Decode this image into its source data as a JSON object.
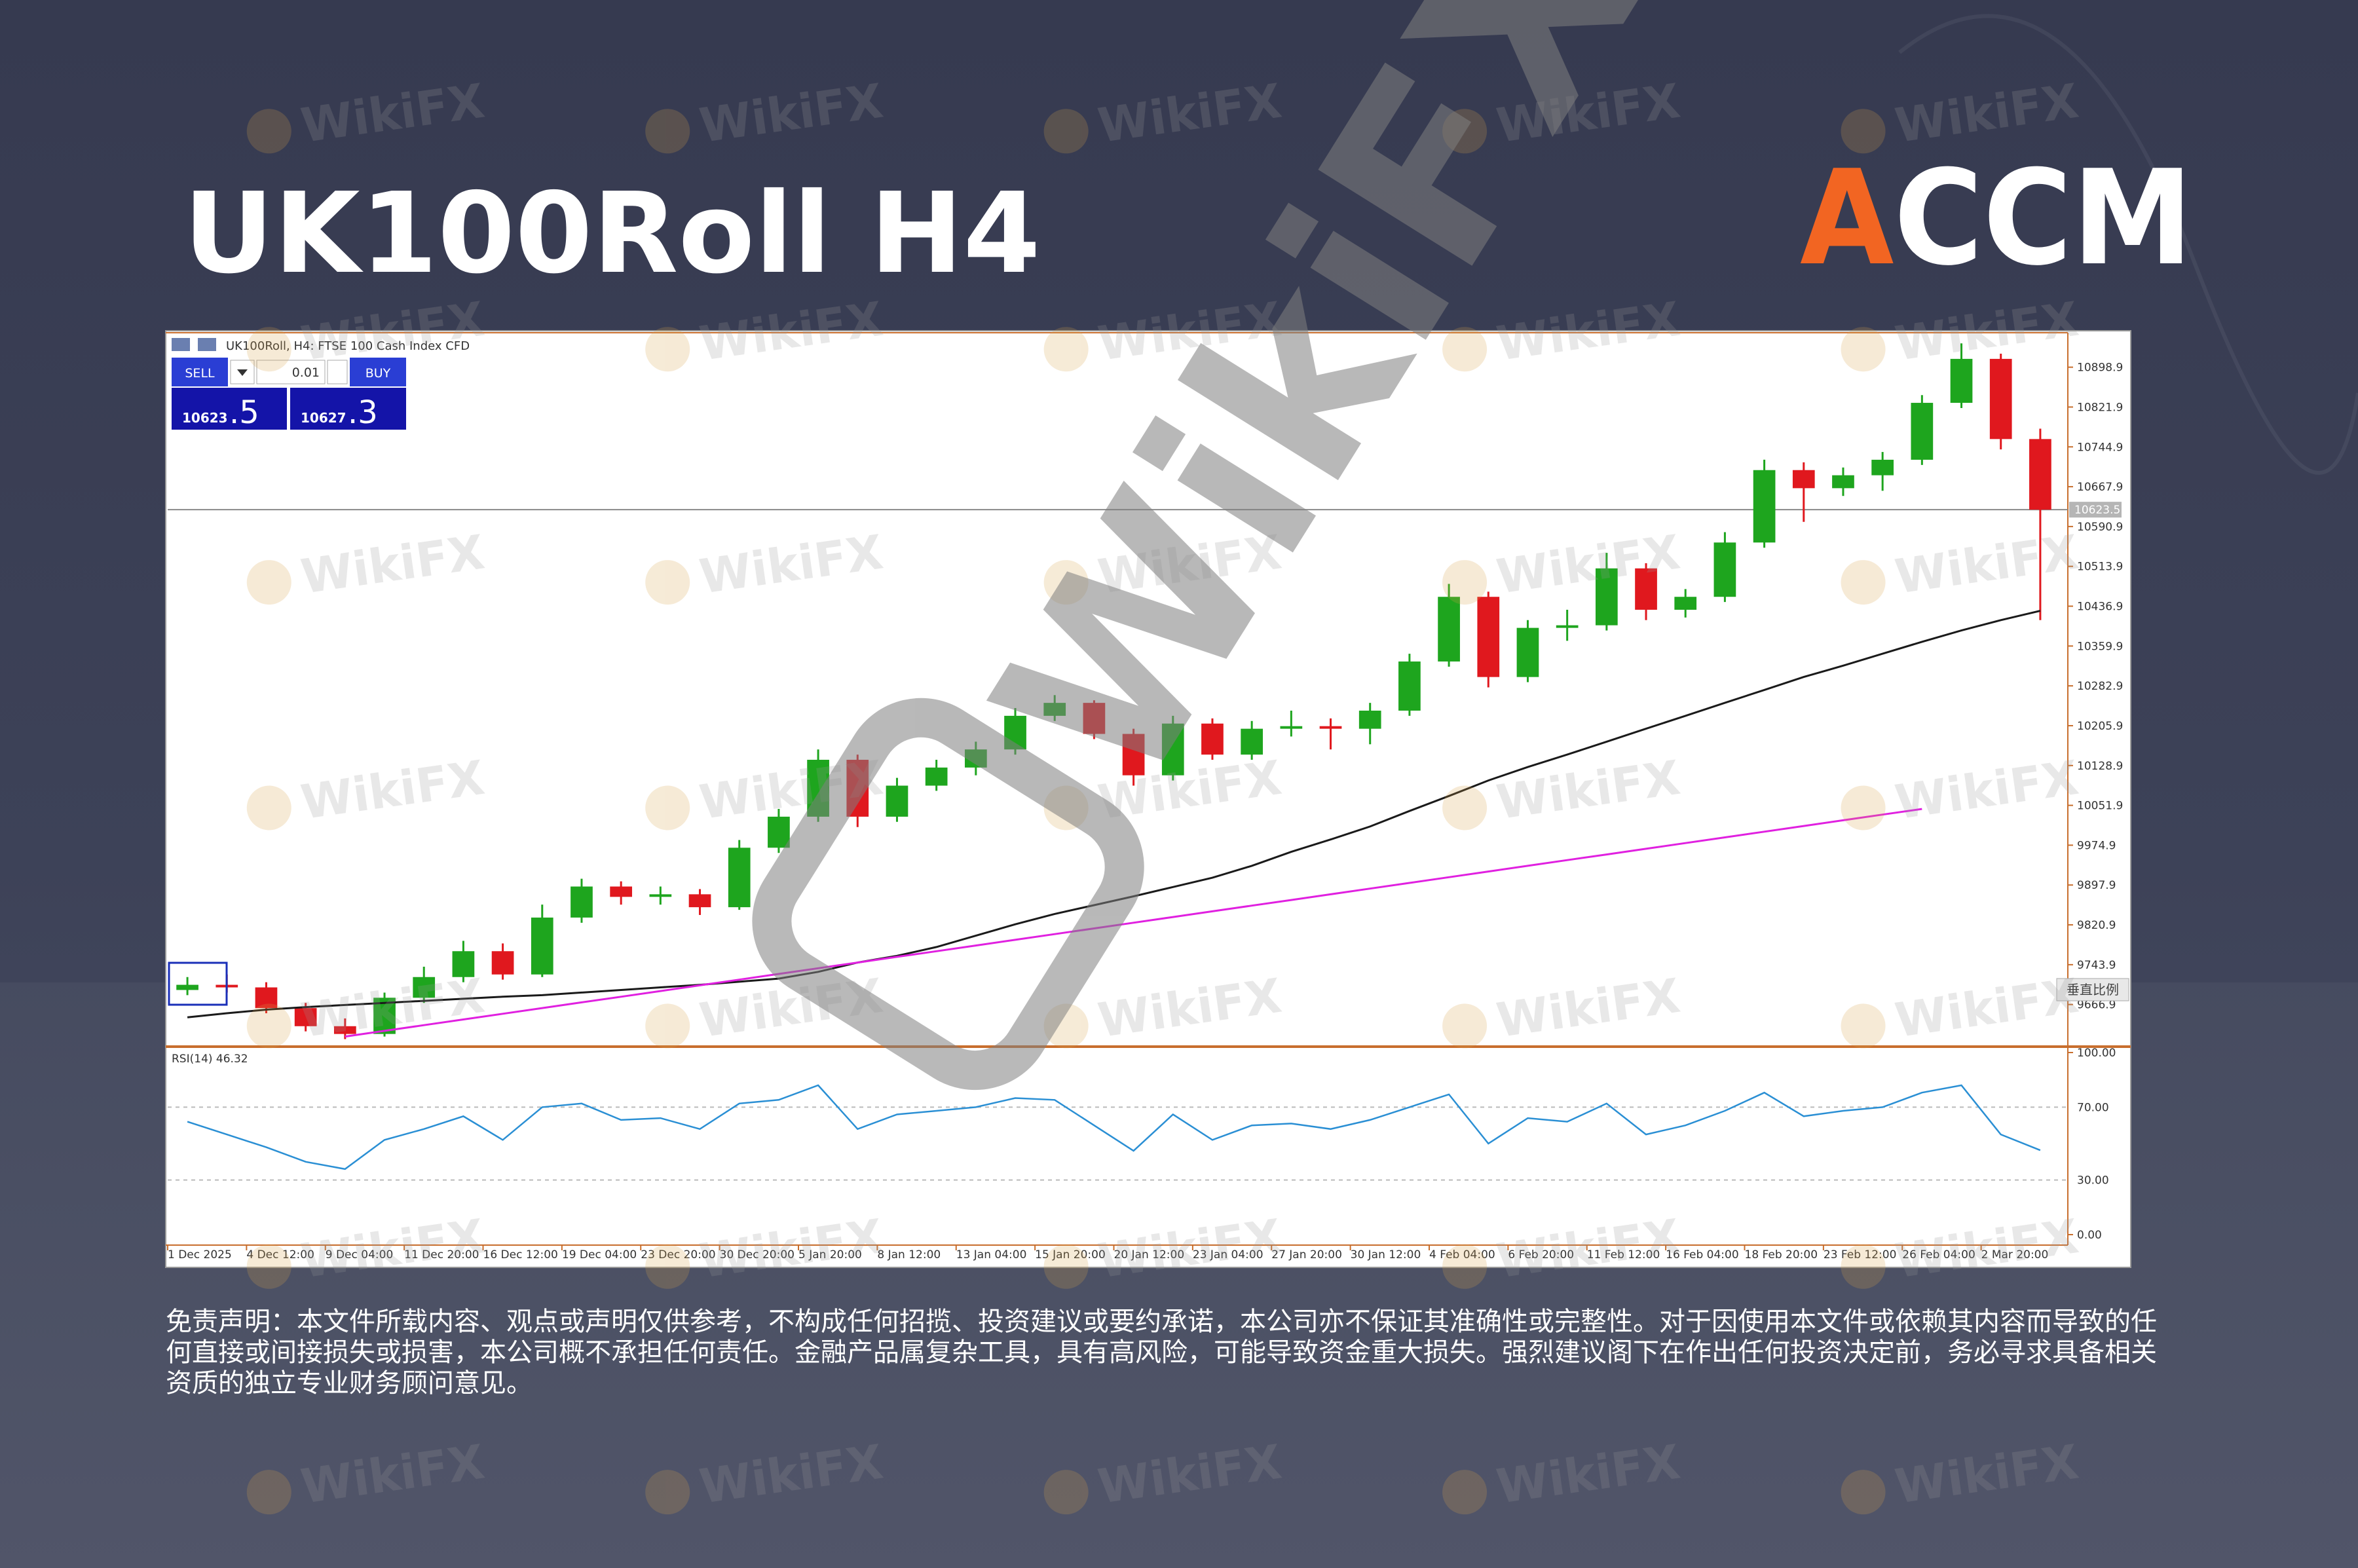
{
  "header": {
    "title": "UK100Roll H4",
    "logo": "ACCM"
  },
  "watermark": "WikiFX",
  "trade_panel": {
    "sell": "SELL",
    "buy": "BUY",
    "volume": "0.01",
    "sell_price": "10623",
    "sell_price_frac": ".5",
    "buy_price": "10627",
    "buy_price_frac": ".3"
  },
  "scale_button": "垂直比例",
  "chart_data": {
    "type": "candlestick",
    "title": "UK100Roll, H4:  FTSE 100 Cash Index CFD",
    "categories": [
      "1 Dec 2025",
      null,
      "4 Dec 12:00",
      null,
      "9 Dec 04:00",
      null,
      "11 Dec 20:00",
      null,
      "16 Dec 12:00",
      null,
      "19 Dec 04:00",
      null,
      "23 Dec 20:00",
      null,
      "30 Dec 20:00",
      null,
      "5 Jan 20:00",
      null,
      "8 Jan 12:00",
      null,
      "13 Jan 04:00",
      null,
      "15 Jan 20:00",
      null,
      "20 Jan 12:00",
      null,
      "23 Jan 04:00",
      null,
      "27 Jan 20:00",
      null,
      "30 Jan 12:00",
      null,
      "4 Feb 04:00",
      null,
      "6 Feb 20:00",
      null,
      "11 Feb 12:00",
      null,
      "16 Feb 04:00",
      null,
      "18 Feb 20:00",
      null,
      "23 Feb 12:00",
      null,
      "26 Feb 04:00",
      null,
      "2 Mar 20:00",
      null
    ],
    "ohlc": [
      [
        9695,
        9720,
        9685,
        9705
      ],
      [
        9705,
        9725,
        9690,
        9700
      ],
      [
        9700,
        9710,
        9650,
        9660
      ],
      [
        9660,
        9670,
        9615,
        9625
      ],
      [
        9625,
        9640,
        9600,
        9610
      ],
      [
        9610,
        9690,
        9605,
        9680
      ],
      [
        9680,
        9740,
        9670,
        9720
      ],
      [
        9720,
        9790,
        9710,
        9770
      ],
      [
        9770,
        9785,
        9715,
        9725
      ],
      [
        9725,
        9860,
        9720,
        9835
      ],
      [
        9835,
        9910,
        9825,
        9895
      ],
      [
        9895,
        9905,
        9860,
        9875
      ],
      [
        9875,
        9895,
        9860,
        9880
      ],
      [
        9880,
        9890,
        9840,
        9855
      ],
      [
        9855,
        9985,
        9850,
        9970
      ],
      [
        9970,
        10045,
        9960,
        10030
      ],
      [
        10030,
        10160,
        10020,
        10140
      ],
      [
        10140,
        10150,
        10010,
        10030
      ],
      [
        10030,
        10105,
        10020,
        10090
      ],
      [
        10090,
        10140,
        10080,
        10125
      ],
      [
        10125,
        10175,
        10110,
        10160
      ],
      [
        10160,
        10240,
        10150,
        10225
      ],
      [
        10225,
        10265,
        10215,
        10250
      ],
      [
        10250,
        10255,
        10180,
        10190
      ],
      [
        10190,
        10200,
        10090,
        10110
      ],
      [
        10110,
        10225,
        10100,
        10210
      ],
      [
        10210,
        10220,
        10140,
        10150
      ],
      [
        10150,
        10215,
        10140,
        10200
      ],
      [
        10200,
        10235,
        10185,
        10205
      ],
      [
        10205,
        10220,
        10160,
        10200
      ],
      [
        10200,
        10250,
        10170,
        10235
      ],
      [
        10235,
        10345,
        10225,
        10330
      ],
      [
        10330,
        10480,
        10320,
        10455
      ],
      [
        10455,
        10465,
        10280,
        10300
      ],
      [
        10300,
        10410,
        10290,
        10395
      ],
      [
        10395,
        10430,
        10370,
        10400
      ],
      [
        10400,
        10540,
        10390,
        10510
      ],
      [
        10510,
        10520,
        10410,
        10430
      ],
      [
        10430,
        10470,
        10415,
        10455
      ],
      [
        10455,
        10580,
        10445,
        10560
      ],
      [
        10560,
        10720,
        10550,
        10700
      ],
      [
        10700,
        10715,
        10600,
        10665
      ],
      [
        10665,
        10705,
        10650,
        10690
      ],
      [
        10690,
        10735,
        10660,
        10720
      ],
      [
        10720,
        10845,
        10710,
        10830
      ],
      [
        10830,
        10945,
        10820,
        10915
      ],
      [
        10915,
        10925,
        10740,
        10760
      ],
      [
        10760,
        10780,
        10410,
        10623.5
      ]
    ],
    "colors": {
      "up": "#1ea51e",
      "down": "#e0181e"
    },
    "ylim": [
      9588,
      10963
    ],
    "yticks": [
      9666.9,
      9743.9,
      9820.9,
      9897.9,
      9974.9,
      10051.9,
      10128.9,
      10205.9,
      10282.9,
      10359.9,
      10436.9,
      10513.9,
      10590.9,
      10667.9,
      10744.9,
      10821.9,
      10898.9
    ],
    "current_price": 10623.5,
    "overlays": [
      {
        "color": "#1a1a1a",
        "values": [
          9642,
          9650,
          9657,
          9662,
          9666,
          9670,
          9674,
          9678,
          9682,
          9685,
          9690,
          9695,
          9700,
          9705,
          9711,
          9717,
          9730,
          9748,
          9761,
          9778,
          9800,
          9822,
          9842,
          9859,
          9876,
          9894,
          9912,
          9935,
          9962,
          9986,
          10011,
          10041,
          10070,
          10100,
          10126,
          10150,
          10175,
          10200,
          10225,
          10250,
          10275,
          10300,
          10322,
          10345,
          10368,
          10390,
          10410,
          10428
        ]
      },
      {
        "color": "#e020e0",
        "values": [
          null,
          null,
          null,
          null,
          9605,
          9616,
          9627,
          9638,
          9649,
          9660,
          9671,
          9682,
          9693,
          9704,
          9715,
          9726,
          9737,
          9748,
          9759,
          9770,
          9781,
          9792,
          9803,
          9814,
          9825,
          9836,
          9847,
          9858,
          9869,
          9880,
          9891,
          9902,
          9913,
          9924,
          9935,
          9946,
          9957,
          9968,
          9979,
          9990,
          10001,
          10012,
          10023,
          10034,
          10045,
          null,
          null,
          null
        ]
      }
    ],
    "indicator": {
      "type": "line",
      "title": "RSI(14) 46.32",
      "color": "#2a8fd4",
      "values": [
        62,
        55,
        48,
        40,
        36,
        52,
        58,
        65,
        52,
        70,
        72,
        63,
        64,
        58,
        72,
        74,
        82,
        58,
        66,
        68,
        70,
        75,
        74,
        60,
        46,
        66,
        52,
        60,
        61,
        58,
        63,
        70,
        77,
        50,
        64,
        62,
        72,
        55,
        60,
        68,
        78,
        65,
        68,
        70,
        78,
        82,
        55,
        46.32
      ],
      "ylim": [
        0,
        100
      ],
      "yticks": [
        {
          "value": 0,
          "label": "0.00"
        },
        {
          "value": 30,
          "label": "30.00"
        },
        {
          "value": 70,
          "label": "70.00"
        },
        {
          "value": 100,
          "label": "100.00"
        }
      ]
    }
  },
  "disclaimer": "免责声明：本文件所载内容、观点或声明仅供参考，不构成任何招揽、投资建议或要约承诺，本公司亦不保证其准确性或完整性。对于因使用本文件或依赖其内容而导致的任何直接或间接损失或损害，本公司概不承担任何责任。金融产品属复杂工具，具有高风险，可能导致资金重大损失。强烈建议阁下在作出任何投资决定前，务必寻求具备相关资质的独立专业财务顾问意见。"
}
